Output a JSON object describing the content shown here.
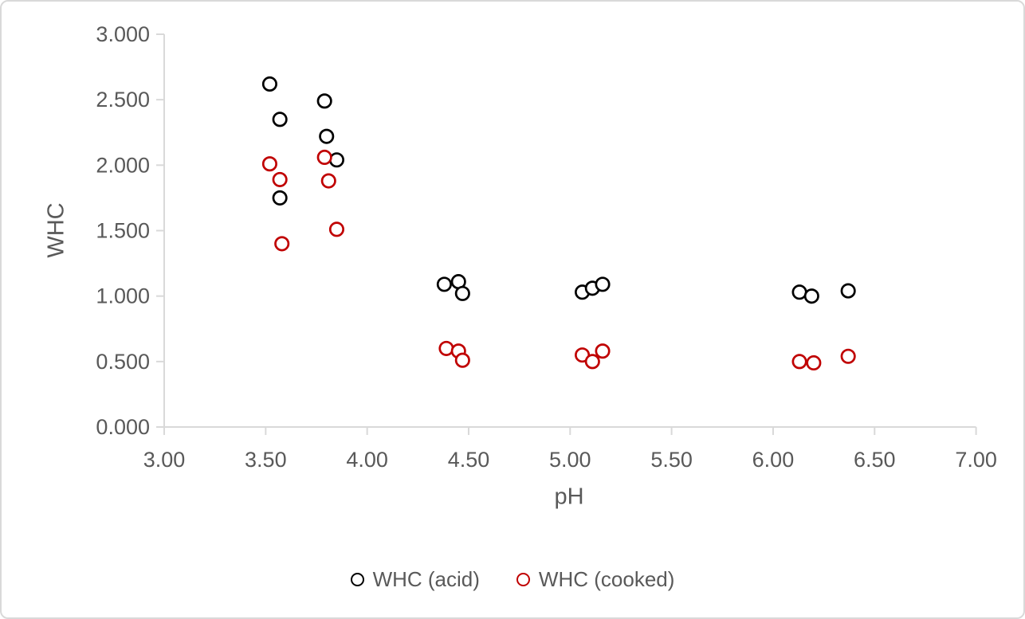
{
  "chart_data": {
    "type": "scatter",
    "title": "",
    "xlabel": "pH",
    "ylabel": "WHC",
    "xlim": [
      3.0,
      7.0
    ],
    "ylim": [
      0.0,
      3.0
    ],
    "x_tick_step": 0.5,
    "y_tick_step": 0.5,
    "x_tick_labels": [
      "3.00",
      "3.50",
      "4.00",
      "4.50",
      "5.00",
      "5.50",
      "6.00",
      "6.50",
      "7.00"
    ],
    "y_tick_labels": [
      "0.000",
      "0.500",
      "1.000",
      "1.500",
      "2.000",
      "2.500",
      "3.000"
    ],
    "grid": "off",
    "legend_position": "bottom-center",
    "axis_color": "#D9D9D9",
    "text_color": "#595959",
    "background_color": "#FFFFFF",
    "marker_style": "open-circle",
    "series": [
      {
        "name": "WHC (acid)",
        "color": "#000000",
        "points": [
          [
            3.52,
            2.62
          ],
          [
            3.57,
            2.35
          ],
          [
            3.57,
            1.75
          ],
          [
            3.79,
            2.49
          ],
          [
            3.8,
            2.22
          ],
          [
            3.85,
            2.04
          ],
          [
            4.38,
            1.09
          ],
          [
            4.45,
            1.11
          ],
          [
            4.47,
            1.02
          ],
          [
            5.06,
            1.03
          ],
          [
            5.11,
            1.06
          ],
          [
            5.16,
            1.09
          ],
          [
            6.13,
            1.03
          ],
          [
            6.19,
            1.0
          ],
          [
            6.37,
            1.04
          ]
        ]
      },
      {
        "name": "WHC (cooked)",
        "color": "#C00000",
        "points": [
          [
            3.52,
            2.01
          ],
          [
            3.57,
            1.89
          ],
          [
            3.58,
            1.4
          ],
          [
            3.79,
            2.06
          ],
          [
            3.81,
            1.88
          ],
          [
            3.85,
            1.51
          ],
          [
            4.39,
            0.6
          ],
          [
            4.45,
            0.58
          ],
          [
            4.47,
            0.51
          ],
          [
            5.06,
            0.55
          ],
          [
            5.11,
            0.5
          ],
          [
            5.16,
            0.58
          ],
          [
            6.13,
            0.5
          ],
          [
            6.2,
            0.49
          ],
          [
            6.37,
            0.54
          ]
        ]
      }
    ]
  }
}
